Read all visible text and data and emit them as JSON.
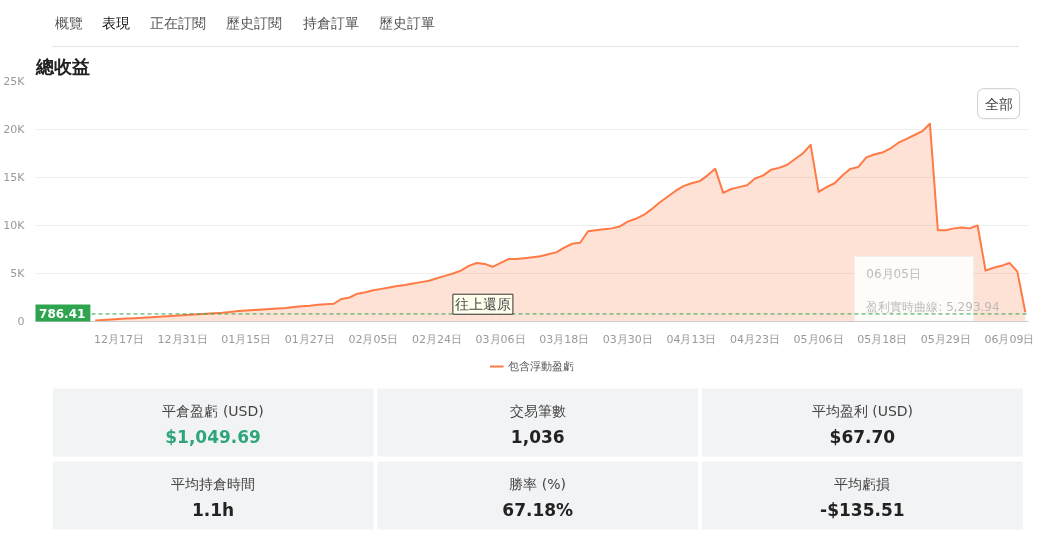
{
  "chart_data": [
    {
      "type": "other",
      "annotations": [
        "概覽",
        "表現",
        "正在訂閱",
        "歷史訂閱",
        "持倉訂單",
        "歷史訂單"
      ],
      "colors": [
        "#555555",
        "#111111",
        "#555555",
        "#555555",
        "#555555",
        "#555555"
      ]
    },
    {
      "type": "area",
      "title": "總收益",
      "annotations": [
        "全部",
        "往上還原",
        "06月05日",
        "盈利實時曲線: 5,293.94"
      ],
      "categories": [
        null,
        null,
        null,
        "12月17日",
        null,
        null,
        null,
        null,
        null,
        null,
        null,
        "12月31日",
        null,
        null,
        null,
        null,
        null,
        null,
        null,
        "01月15日",
        null,
        null,
        null,
        null,
        null,
        null,
        null,
        "01月27日",
        null,
        null,
        null,
        null,
        null,
        null,
        null,
        "02月05日",
        null,
        null,
        null,
        null,
        null,
        null,
        null,
        "02月24日",
        null,
        null,
        null,
        null,
        null,
        null,
        null,
        "03月06日",
        null,
        null,
        null,
        null,
        null,
        null,
        null,
        "03月18日",
        null,
        null,
        null,
        null,
        null,
        null,
        null,
        "03月30日",
        null,
        null,
        null,
        null,
        null,
        null,
        null,
        "04月13日",
        null,
        null,
        null,
        null,
        null,
        null,
        null,
        "04月23日",
        null,
        null,
        null,
        null,
        null,
        null,
        null,
        "05月06日",
        null,
        null,
        null,
        null,
        null,
        null,
        null,
        "05月18日",
        null,
        null,
        null,
        null,
        null,
        null,
        null,
        "05月29日",
        null,
        null,
        null,
        null,
        null,
        null,
        null,
        "06月09日",
        null,
        null
      ],
      "series": [
        {
          "name": "包含浮動盈虧",
          "color": "#ff7a45",
          "values": [
            100,
            150,
            200,
            250,
            300,
            350,
            400,
            450,
            500,
            550,
            600,
            650,
            700,
            750,
            800,
            850,
            900,
            1000,
            1100,
            1150,
            1200,
            1250,
            1300,
            1350,
            1400,
            1500,
            1600,
            1650,
            1750,
            1800,
            1850,
            2350,
            2500,
            2900,
            3050,
            3250,
            3400,
            3550,
            3700,
            3800,
            3950,
            4100,
            4250,
            4500,
            4750,
            5000,
            5300,
            5800,
            6100,
            6000,
            5700,
            6100,
            6500,
            6500,
            6600,
            6700,
            6800,
            7000,
            7200,
            7700,
            8100,
            8200,
            9400,
            9500,
            9600,
            9700,
            9900,
            10400,
            10700,
            11100,
            11700,
            12400,
            13000,
            13600,
            14100,
            14400,
            14600,
            15200,
            15900,
            13400,
            13800,
            14000,
            14200,
            14900,
            15200,
            15800,
            16000,
            16300,
            16900,
            17500,
            18400,
            13500,
            14000,
            14400,
            15200,
            15900,
            16100,
            17100,
            17400,
            17600,
            18000,
            18600,
            19000,
            19400,
            19800,
            20600,
            9500,
            9500,
            9700,
            9800,
            9700,
            10000,
            5293.94,
            5600,
            5800,
            6100,
            5200,
            960
          ]
        }
      ],
      "ylim": [
        0,
        25000
      ],
      "yticks": [
        {
          "value": 0,
          "label": "0"
        },
        {
          "value": 5000,
          "label": "5K"
        },
        {
          "value": 10000,
          "label": "10K"
        },
        {
          "value": 15000,
          "label": "15K"
        },
        {
          "value": 20000,
          "label": "20K"
        },
        {
          "value": 25000,
          "label": "25K"
        }
      ],
      "grid": "y",
      "legend": "bottom",
      "ref_lines": [
        {
          "axis": "y",
          "value": 786.41,
          "label": "786.41",
          "color": "#2ea44f",
          "line_style": "dashed"
        }
      ]
    },
    {
      "type": "other",
      "annotations": [
        "平倉盈虧 (USD)",
        "$1,049.69",
        "交易筆數",
        "1,036",
        "平均盈利 (USD)",
        "$67.70",
        "平均持倉時間",
        "1.1h",
        "勝率 (%)",
        "67.18%",
        "平均虧損",
        "-$135.51"
      ],
      "colors": [
        "#444444",
        "#2ea67a",
        "#444444",
        "#222222",
        "#444444",
        "#222222",
        "#444444",
        "#222222",
        "#444444",
        "#222222",
        "#444444",
        "#222222"
      ]
    }
  ]
}
